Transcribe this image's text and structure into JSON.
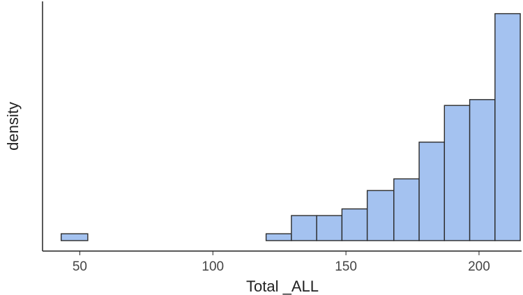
{
  "chart_data": {
    "type": "bar",
    "xlabel": "Total _ALL",
    "ylabel": "density",
    "xlim": [
      36,
      216
    ],
    "x_ticks": [
      50,
      100,
      150,
      200
    ],
    "y_ticks_shown": false,
    "grid": false,
    "bar_color": "#a4c2f0",
    "bar_edge_color": "#2b2b2b",
    "bins": [
      {
        "x0": 43,
        "x1": 53,
        "density": 0.00082
      },
      {
        "x0": 53,
        "x1": 63,
        "density": 0
      },
      {
        "x0": 63,
        "x1": 73,
        "density": 0
      },
      {
        "x0": 73,
        "x1": 83,
        "density": 0
      },
      {
        "x0": 83,
        "x1": 93,
        "density": 0
      },
      {
        "x0": 93,
        "x1": 103,
        "density": 0
      },
      {
        "x0": 103,
        "x1": 113,
        "density": 0
      },
      {
        "x0": 113,
        "x1": 120,
        "density": 0
      },
      {
        "x0": 120,
        "x1": 129.5,
        "density": 0.00082
      },
      {
        "x0": 129.5,
        "x1": 139,
        "density": 0.003
      },
      {
        "x0": 139,
        "x1": 148.5,
        "density": 0.003
      },
      {
        "x0": 148.5,
        "x1": 158,
        "density": 0.0038
      },
      {
        "x0": 158,
        "x1": 168,
        "density": 0.006
      },
      {
        "x0": 168,
        "x1": 177.5,
        "density": 0.0074
      },
      {
        "x0": 177.5,
        "x1": 187,
        "density": 0.0118
      },
      {
        "x0": 187,
        "x1": 196.5,
        "density": 0.0162
      },
      {
        "x0": 196.5,
        "x1": 206,
        "density": 0.0169
      },
      {
        "x0": 206,
        "x1": 215.5,
        "density": 0.0272
      }
    ],
    "ylim": [
      0,
      0.0275
    ]
  }
}
